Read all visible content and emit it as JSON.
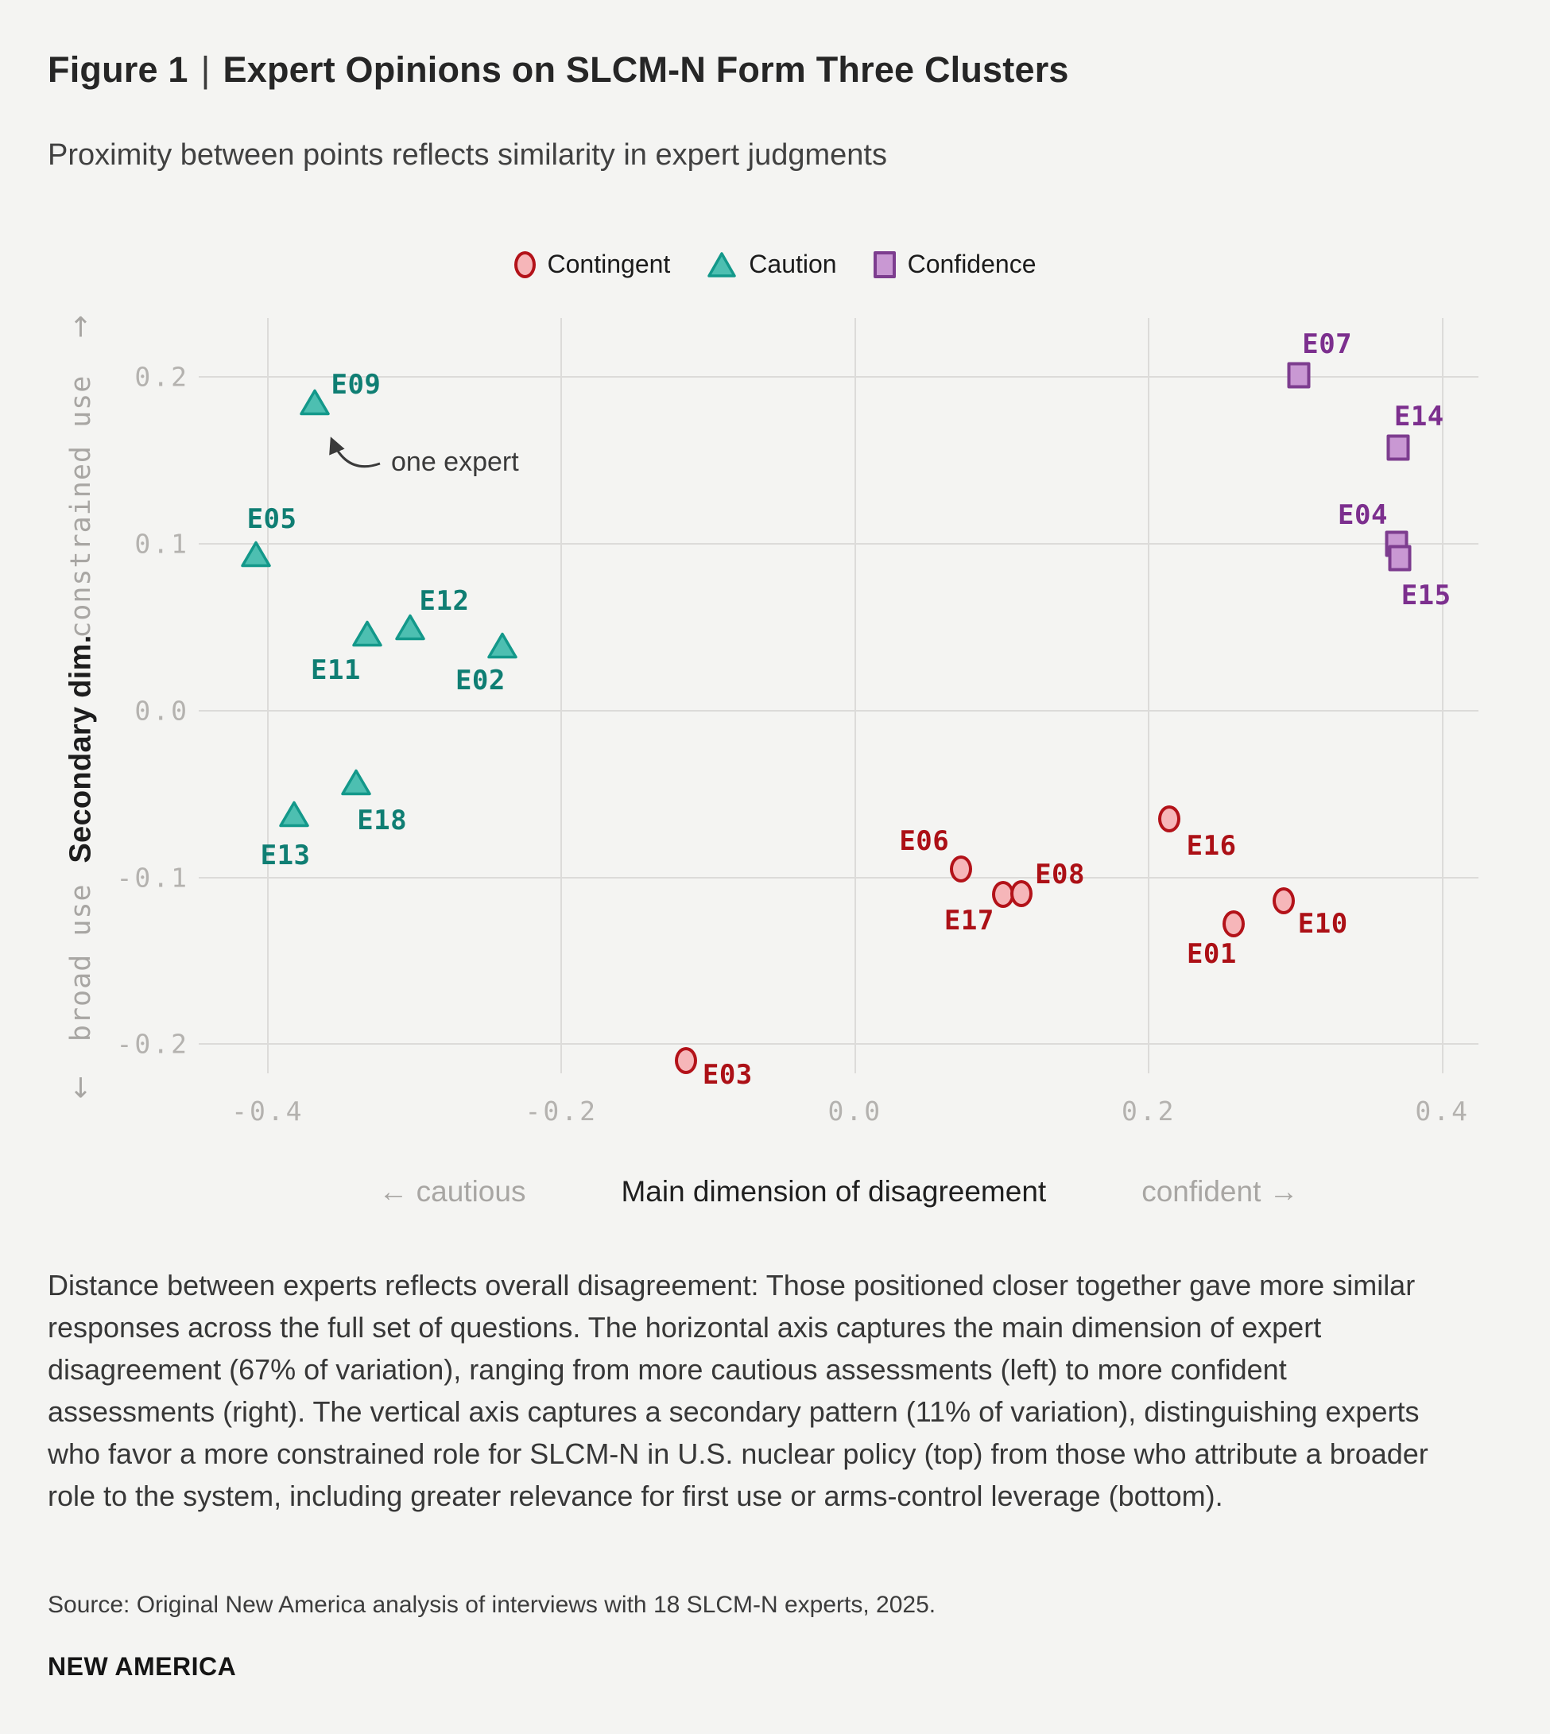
{
  "page": {
    "title_prefix": "Figure 1",
    "title_separator": "|",
    "title_text": "Expert Opinions on SLCM-N Form Three Clusters",
    "subtitle": "Proximity between points reflects similarity in expert judgments",
    "caption": "Distance between experts reflects overall disagreement: Those positioned closer together gave more similar responses across the full set of questions. The horizontal axis captures the main dimension of expert disagreement (67% of variation), ranging from more cautious assessments (left) to more confident assessments (right). The vertical axis captures a secondary pattern (11% of variation), distinguishing experts who favor a more constrained role for SLCM-N in U.S. nuclear policy (top) from those who attribute a broader role to the system, including greater relevance for first use or arms-control leverage (bottom).",
    "source": "Source: Original New America analysis of interviews with 18 SLCM-N experts, 2025.",
    "brand": "NEW AMERICA"
  },
  "legend": [
    {
      "label": "Contingent",
      "marker": "circle",
      "fill": "#f6b6b9",
      "stroke": "#b31219"
    },
    {
      "label": "Caution",
      "marker": "triangle",
      "fill": "#4dbfb1",
      "stroke": "#13988a"
    },
    {
      "label": "Confidence",
      "marker": "square",
      "fill": "#c998d3",
      "stroke": "#7d3d8f"
    }
  ],
  "chart_data": {
    "type": "scatter",
    "title": "Expert Opinions on SLCM-N Form Three Clusters",
    "xlabel": "Main dimension of disagreement",
    "xlabel_left": "← cautious",
    "xlabel_right": "confident →",
    "ylabel": "Secondary dim.",
    "ylabel_top": "constrained use",
    "ylabel_top_arrow": "↑",
    "ylabel_bottom": "broad use",
    "ylabel_bottom_arrow": "↓",
    "grid": true,
    "xlim": [
      -0.447,
      0.4245
    ],
    "ylim": [
      -0.2175,
      0.2355
    ],
    "x_ticks": [
      {
        "value": -0.4,
        "label": "-0.4"
      },
      {
        "value": -0.2,
        "label": "-0.2"
      },
      {
        "value": 0.0,
        "label": "0.0"
      },
      {
        "value": 0.2,
        "label": "0.2"
      },
      {
        "value": 0.4,
        "label": "0.4"
      }
    ],
    "y_ticks": [
      {
        "value": 0.2,
        "label": "0.2"
      },
      {
        "value": 0.1,
        "label": "0.1"
      },
      {
        "value": 0.0,
        "label": "0.0"
      },
      {
        "value": -0.1,
        "label": "-0.1"
      },
      {
        "value": -0.2,
        "label": "-0.2"
      }
    ],
    "annotation": {
      "text": "one expert",
      "target": "E09"
    },
    "series": [
      {
        "name": "Caution",
        "marker": "triangle",
        "fill": "#4dbfb1",
        "stroke": "#13988a",
        "label_color": "#0f7e73",
        "points": [
          {
            "id": "E05",
            "x": -0.408,
            "y": 0.094,
            "dx": 20,
            "dy": -44
          },
          {
            "id": "E09",
            "x": -0.368,
            "y": 0.185,
            "dx": 52,
            "dy": -22
          },
          {
            "id": "E11",
            "x": -0.332,
            "y": 0.046,
            "dx": -40,
            "dy": 46
          },
          {
            "id": "E12",
            "x": -0.303,
            "y": 0.05,
            "dx": 43,
            "dy": -33
          },
          {
            "id": "E02",
            "x": -0.24,
            "y": 0.039,
            "dx": -28,
            "dy": 44
          },
          {
            "id": "E18",
            "x": -0.34,
            "y": -0.043,
            "dx": 33,
            "dy": 48
          },
          {
            "id": "E13",
            "x": -0.382,
            "y": -0.062,
            "dx": -11,
            "dy": 52
          }
        ]
      },
      {
        "name": "Contingent",
        "marker": "circle",
        "fill": "#f6b6b9",
        "stroke": "#b31219",
        "label_color": "#ac1016",
        "points": [
          {
            "id": "E06",
            "x": 0.072,
            "y": -0.095,
            "dx": -46,
            "dy": -35
          },
          {
            "id": "E17",
            "x": 0.101,
            "y": -0.11,
            "dx": -43,
            "dy": 33
          },
          {
            "id": "E08",
            "x": 0.113,
            "y": -0.1095,
            "dx": 49,
            "dy": -24
          },
          {
            "id": "E16",
            "x": 0.214,
            "y": -0.065,
            "dx": 53,
            "dy": 34
          },
          {
            "id": "E01",
            "x": 0.258,
            "y": -0.128,
            "dx": -28,
            "dy": 38
          },
          {
            "id": "E10",
            "x": 0.292,
            "y": -0.114,
            "dx": 49,
            "dy": 29
          },
          {
            "id": "E03",
            "x": -0.115,
            "y": -0.21,
            "dx": 52,
            "dy": 18
          }
        ]
      },
      {
        "name": "Confidence",
        "marker": "square",
        "fill": "#c998d3",
        "stroke": "#7d3d8f",
        "label_color": "#7c2f8e",
        "points": [
          {
            "id": "E07",
            "x": 0.302,
            "y": 0.201,
            "dx": 36,
            "dy": -39
          },
          {
            "id": "E14",
            "x": 0.37,
            "y": 0.158,
            "dx": 26,
            "dy": -39
          },
          {
            "id": "E04",
            "x": 0.369,
            "y": 0.1,
            "dx": -43,
            "dy": -36
          },
          {
            "id": "E15",
            "x": 0.371,
            "y": 0.0915,
            "dx": 33,
            "dy": 47
          }
        ]
      }
    ]
  }
}
